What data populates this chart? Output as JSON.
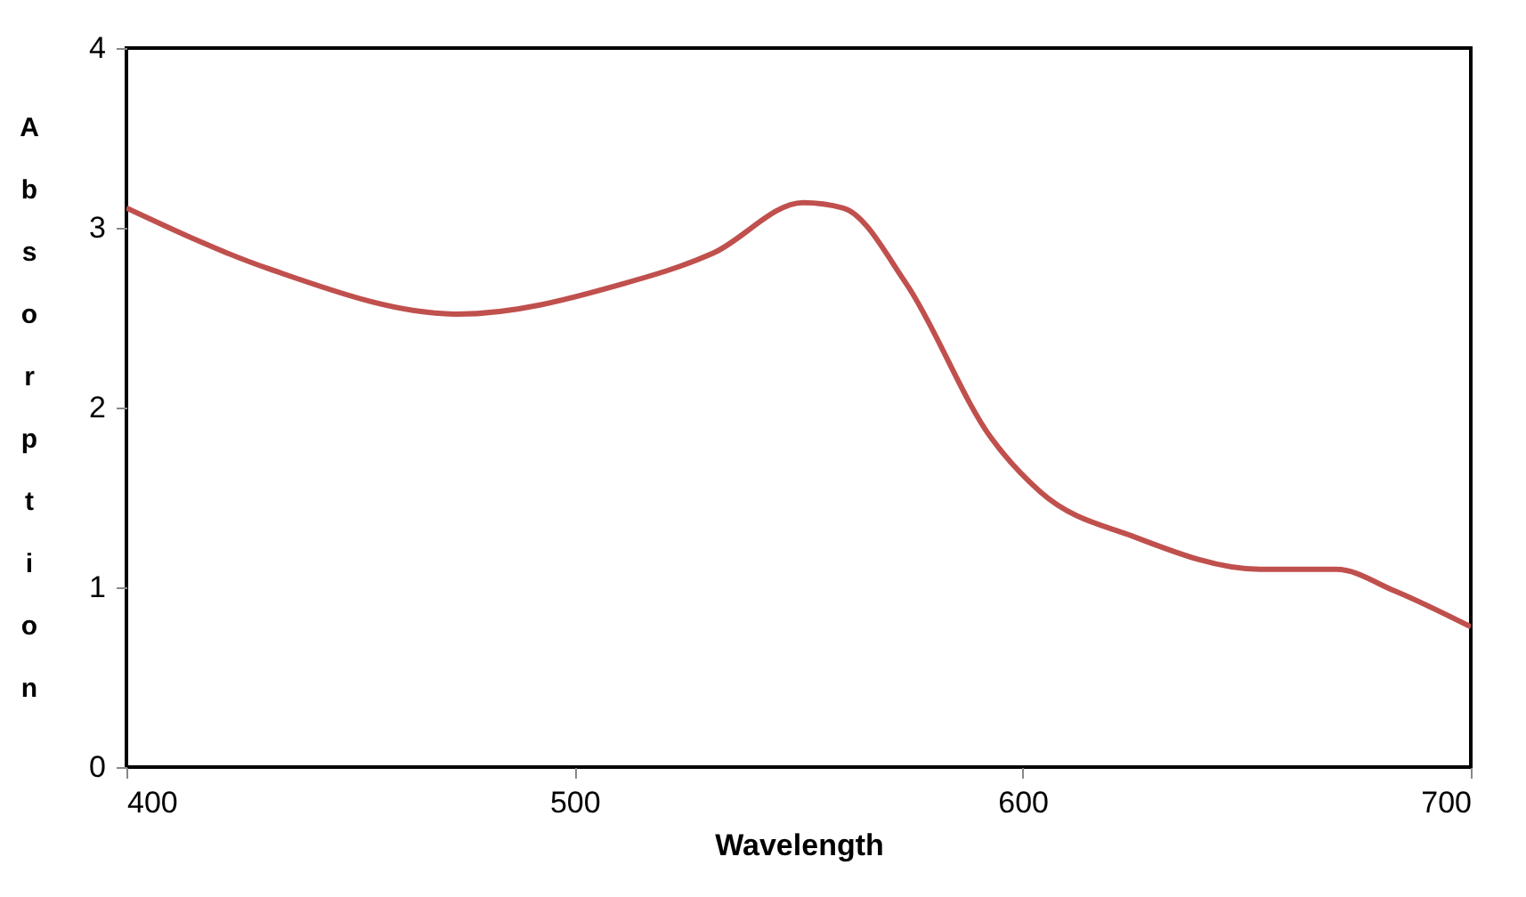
{
  "chart_data": {
    "type": "line",
    "xlabel": "Wavelength",
    "ylabel": "Absorption",
    "x": [
      400,
      432,
      474,
      511,
      531,
      551,
      560,
      574,
      593,
      604,
      625,
      653,
      670,
      683,
      700
    ],
    "series": [
      {
        "color": "#c0504d",
        "values": [
          3.11,
          2.77,
          2.52,
          2.69,
          2.86,
          3.14,
          3.11,
          2.69,
          1.83,
          1.53,
          1.28,
          1.1,
          1.1,
          0.98,
          0.78
        ]
      }
    ],
    "xlim": [
      400,
      700
    ],
    "xticks": [
      400,
      500,
      600,
      700
    ],
    "ylim": [
      0,
      4
    ],
    "yticks": [
      0,
      1,
      2,
      3,
      4
    ],
    "grid": false,
    "marker": "none",
    "line_style": "solid"
  }
}
